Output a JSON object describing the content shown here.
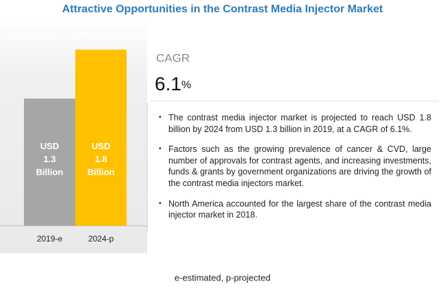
{
  "chart_data": {
    "type": "bar",
    "title": "Attractive Opportunities in the Contrast Media Injector Market",
    "categories": [
      "2019-e",
      "2024-p"
    ],
    "values": [
      1.3,
      1.8
    ],
    "value_labels": [
      "USD 1.3 Billion",
      "USD 1.8 Billion"
    ],
    "colors": [
      "#a6a6a6",
      "#ffc000"
    ],
    "cagr": {
      "label": "CAGR",
      "value": 6.1,
      "unit": "%"
    },
    "bullets": [
      "The contrast media injector market is projected to reach USD 1.8 billion by 2024 from USD 1.3 billion in 2019, at a CAGR of 6.1%.",
      "Factors such as the growing prevalence of cancer & CVD, large number of approvals for contrast agents, and increasing investments, funds & grants by government organizations are driving the growth of the contrast media injectors market.",
      "North America accounted for the largest share of the contrast media injector market in 2018."
    ],
    "footnote": "e-estimated, p-projected"
  }
}
